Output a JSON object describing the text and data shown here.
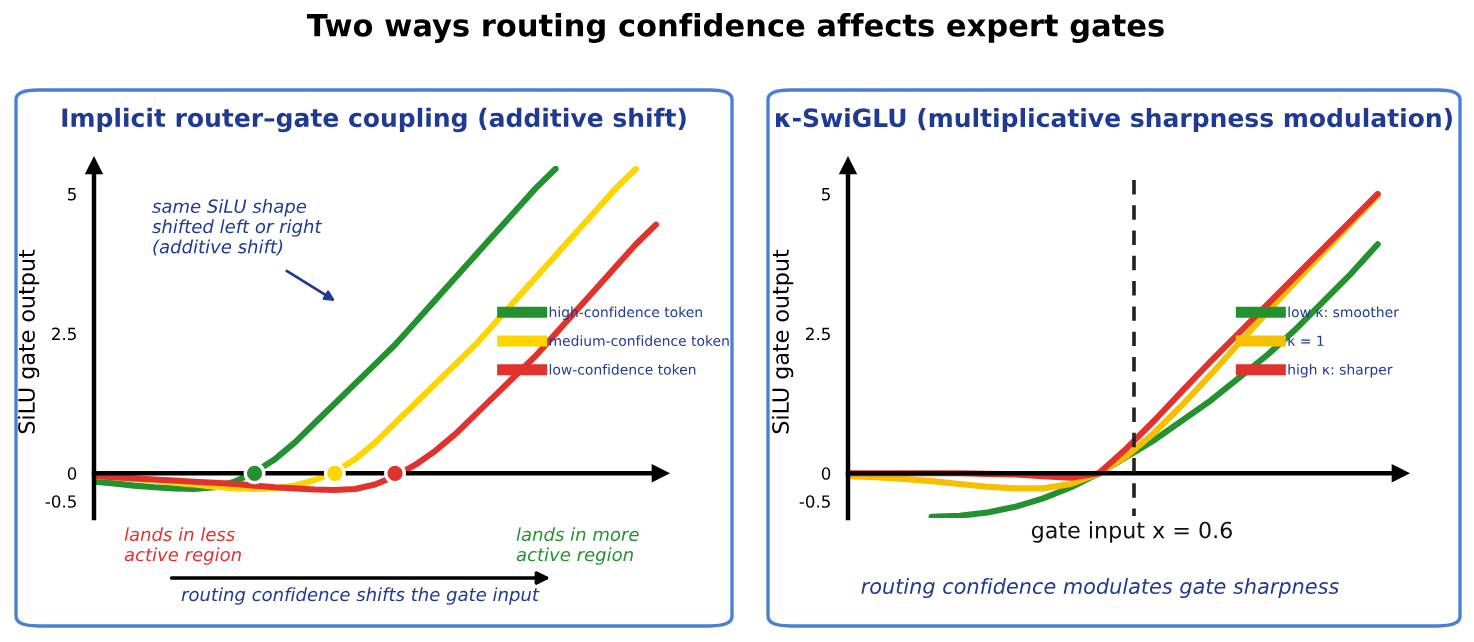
{
  "chart_data": [
    {
      "type": "line",
      "title": "Implicit router–gate coupling (additive shift)",
      "ylabel": "SiLU gate output",
      "categories": [
        null,
        null,
        null,
        null,
        null,
        null,
        null,
        null,
        null,
        null,
        null,
        null,
        null,
        null,
        null,
        null,
        null,
        null,
        null,
        null,
        null,
        null,
        null,
        null,
        null,
        null,
        null,
        null,
        null
      ],
      "series": [
        {
          "name": "high-confidence token",
          "color": "#23912f",
          "values": [
            -0.15,
            -0.18,
            -0.22,
            -0.25,
            -0.27,
            -0.28,
            -0.25,
            -0.15,
            0.02,
            0.25,
            0.55,
            0.9,
            1.25,
            1.6,
            1.95,
            2.3,
            2.7,
            3.1,
            3.5,
            3.9,
            4.3,
            4.7,
            5.1,
            5.45,
            null,
            null,
            null,
            null,
            null
          ]
        },
        {
          "name": "medium-confidence token",
          "color": "#ffd500",
          "values": [
            -0.05,
            -0.07,
            -0.1,
            -0.13,
            -0.17,
            -0.2,
            -0.24,
            -0.27,
            -0.28,
            -0.27,
            -0.22,
            -0.12,
            0.02,
            0.25,
            0.55,
            0.9,
            1.25,
            1.6,
            1.95,
            2.3,
            2.7,
            3.1,
            3.5,
            3.9,
            4.3,
            4.7,
            5.1,
            5.45,
            null
          ]
        },
        {
          "name": "low-confidence token",
          "color": "#e0332e",
          "values": [
            -0.05,
            -0.07,
            -0.09,
            -0.11,
            -0.13,
            -0.15,
            -0.17,
            -0.19,
            -0.22,
            -0.25,
            -0.27,
            -0.29,
            -0.3,
            -0.28,
            -0.2,
            -0.05,
            0.15,
            0.4,
            0.7,
            1.05,
            1.4,
            1.75,
            2.1,
            2.5,
            2.9,
            3.3,
            3.7,
            4.1,
            4.45
          ]
        },
        {
          "type": "scatter",
          "color": "#23912f",
          "values": [
            null,
            null,
            null,
            null,
            null,
            null,
            null,
            null,
            0,
            null,
            null,
            null,
            null,
            null,
            null,
            null,
            null,
            null,
            null,
            null,
            null,
            null,
            null,
            null,
            null,
            null,
            null,
            null,
            null
          ]
        },
        {
          "type": "scatter",
          "color": "#ffd500",
          "values": [
            null,
            null,
            null,
            null,
            null,
            null,
            null,
            null,
            null,
            null,
            null,
            null,
            0,
            null,
            null,
            null,
            null,
            null,
            null,
            null,
            null,
            null,
            null,
            null,
            null,
            null,
            null,
            null,
            null
          ]
        },
        {
          "type": "scatter",
          "color": "#e0332e",
          "values": [
            null,
            null,
            null,
            null,
            null,
            null,
            null,
            null,
            null,
            null,
            null,
            null,
            null,
            null,
            null,
            0,
            null,
            null,
            null,
            null,
            null,
            null,
            null,
            null,
            null,
            null,
            null,
            null,
            null
          ]
        }
      ],
      "ylim": [
        -0.8,
        5.5
      ],
      "yticks": [
        -0.5,
        0,
        2.5,
        5
      ],
      "tick_labels": "y",
      "legend": "right",
      "annotations": [
        "Two ways routing confidence affects expert gates",
        "same SiLU shape\nshifted left or right\n(additive shift)",
        "lands in less\nactive region",
        "lands in more\nactive region",
        "routing confidence shifts the gate input"
      ]
    },
    {
      "type": "line",
      "title": "κ-SwiGLU (multiplicative sharpness modulation)",
      "ylabel": "SiLU gate output",
      "series": [
        {
          "name": "low κ: smoother",
          "color": "#23912f",
          "values": [
            null,
            null,
            null,
            -0.78,
            -0.76,
            -0.7,
            -0.6,
            -0.45,
            -0.25,
            0,
            0.3,
            0.6,
            0.95,
            1.3,
            1.7,
            2.1,
            2.55,
            3.05,
            3.55,
            4.1
          ]
        },
        {
          "name": "κ = 1",
          "color": "#f5c000",
          "values": [
            -0.05,
            -0.07,
            -0.1,
            -0.14,
            -0.19,
            -0.24,
            -0.27,
            -0.27,
            -0.19,
            0,
            0.31,
            0.73,
            1.23,
            1.76,
            2.32,
            2.86,
            3.4,
            3.93,
            4.45,
            4.97
          ]
        },
        {
          "name": "high κ: sharper",
          "color": "#e0332e",
          "values": [
            0,
            0,
            0,
            0,
            0,
            -0.01,
            -0.02,
            -0.05,
            -0.08,
            0,
            0.45,
            0.95,
            1.48,
            2,
            2.5,
            3,
            3.5,
            4,
            4.5,
            5
          ]
        }
      ],
      "categories": [
        null,
        null,
        null,
        null,
        null,
        null,
        null,
        null,
        null,
        null,
        null,
        null,
        null,
        null,
        null,
        null,
        null,
        null,
        null,
        null
      ],
      "ylim": [
        -0.8,
        5.5
      ],
      "yticks": [
        -0.5,
        0,
        2.5,
        5
      ],
      "tick_labels": "y",
      "legend": "right",
      "annotations": [
        "routing confidence modulates gate sharpness",
        "gate input x = 0.6"
      ]
    }
  ]
}
